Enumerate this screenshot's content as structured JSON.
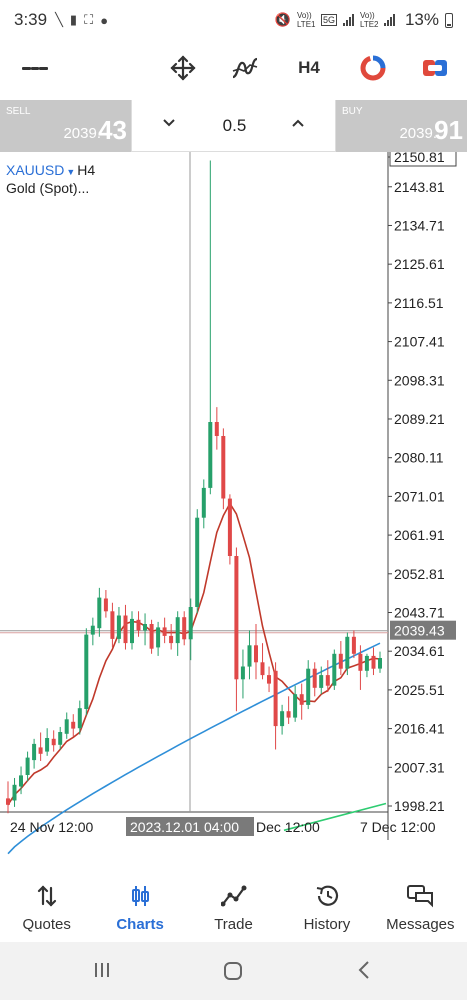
{
  "status_bar": {
    "time": "3:39",
    "battery": "13%",
    "net1": "Vo)) LTE1",
    "net2": "Vo)) LTE2",
    "gen": "5G"
  },
  "toolbar": {
    "timeframe": "H4",
    "icons": [
      "menu-icon",
      "crosshair-move-icon",
      "indicators-icon",
      "timeframe",
      "one-click-trading-icon",
      "deal-icon"
    ]
  },
  "trade": {
    "sell_label": "SELL",
    "sell_price_small": "2039.",
    "sell_price_big": "43",
    "buy_label": "BUY",
    "buy_price_small": "2039.",
    "buy_price_big": "91",
    "volume": "0.5"
  },
  "chart": {
    "symbol": "XAUUSD",
    "timeframe": "H4",
    "instrument_name": "Gold (Spot)...",
    "price_ticks": [
      "2150.81",
      "2143.81",
      "2134.71",
      "2125.61",
      "2116.51",
      "2107.41",
      "2098.31",
      "2089.21",
      "2080.11",
      "2071.01",
      "2061.91",
      "2052.81",
      "2043.71",
      "2039.43",
      "2034.61",
      "2025.51",
      "2016.41",
      "2007.31",
      "1998.21"
    ],
    "time_labels": [
      "24 Nov 12:00",
      "2023.12.01 04:00",
      "Dec 12:00",
      "7 Dec 12:00"
    ],
    "colors": {
      "bull": "#26a06a",
      "bear": "#e04848",
      "ma_fast": "#c0392b",
      "ma_slow": "#2f8fd8",
      "ma_long": "#2ecc71",
      "price_line": "#999999"
    }
  },
  "chart_data": {
    "type": "candlestick",
    "symbol": "XAUUSD",
    "timeframe": "H4",
    "ylim": [
      1995,
      2153
    ],
    "current_price": 2039.43,
    "candles": [
      {
        "o": 2000.0,
        "h": 2004.0,
        "l": 1996.5,
        "c": 1998.5
      },
      {
        "o": 1999.5,
        "h": 2004.8,
        "l": 1998.0,
        "c": 2003.2
      },
      {
        "o": 2002.8,
        "h": 2007.5,
        "l": 2001.0,
        "c": 2005.4
      },
      {
        "o": 2005.5,
        "h": 2011.0,
        "l": 2004.0,
        "c": 2009.6
      },
      {
        "o": 2009.0,
        "h": 2014.0,
        "l": 2007.0,
        "c": 2012.8
      },
      {
        "o": 2012.0,
        "h": 2015.5,
        "l": 2008.8,
        "c": 2010.5
      },
      {
        "o": 2011.0,
        "h": 2016.5,
        "l": 2010.0,
        "c": 2014.2
      },
      {
        "o": 2014.0,
        "h": 2016.0,
        "l": 2011.0,
        "c": 2012.5
      },
      {
        "o": 2012.6,
        "h": 2016.8,
        "l": 2011.5,
        "c": 2015.6
      },
      {
        "o": 2015.2,
        "h": 2020.2,
        "l": 2014.0,
        "c": 2018.6
      },
      {
        "o": 2018.0,
        "h": 2019.8,
        "l": 2014.5,
        "c": 2016.4
      },
      {
        "o": 2016.5,
        "h": 2023.0,
        "l": 2015.0,
        "c": 2021.2
      },
      {
        "o": 2021.0,
        "h": 2040.0,
        "l": 2019.5,
        "c": 2038.5
      },
      {
        "o": 2038.5,
        "h": 2042.5,
        "l": 2036.0,
        "c": 2040.6
      },
      {
        "o": 2040.0,
        "h": 2049.5,
        "l": 2038.0,
        "c": 2047.2
      },
      {
        "o": 2047.0,
        "h": 2049.0,
        "l": 2042.5,
        "c": 2044.0
      },
      {
        "o": 2044.0,
        "h": 2046.0,
        "l": 2035.5,
        "c": 2037.5
      },
      {
        "o": 2037.5,
        "h": 2045.0,
        "l": 2036.5,
        "c": 2043.0
      },
      {
        "o": 2043.0,
        "h": 2045.5,
        "l": 2035.0,
        "c": 2036.5
      },
      {
        "o": 2036.5,
        "h": 2044.0,
        "l": 2035.0,
        "c": 2042.2
      },
      {
        "o": 2042.0,
        "h": 2044.0,
        "l": 2038.0,
        "c": 2039.5
      },
      {
        "o": 2039.5,
        "h": 2043.5,
        "l": 2036.0,
        "c": 2041.0
      },
      {
        "o": 2041.0,
        "h": 2042.0,
        "l": 2034.0,
        "c": 2035.2
      },
      {
        "o": 2035.5,
        "h": 2041.5,
        "l": 2033.5,
        "c": 2040.2
      },
      {
        "o": 2040.2,
        "h": 2042.5,
        "l": 2036.5,
        "c": 2038.2
      },
      {
        "o": 2038.2,
        "h": 2041.0,
        "l": 2035.0,
        "c": 2036.5
      },
      {
        "o": 2036.5,
        "h": 2044.0,
        "l": 2033.5,
        "c": 2042.6
      },
      {
        "o": 2042.6,
        "h": 2044.0,
        "l": 2036.0,
        "c": 2037.4
      },
      {
        "o": 2037.4,
        "h": 2047.0,
        "l": 2032.5,
        "c": 2045.0
      },
      {
        "o": 2045.0,
        "h": 2068.0,
        "l": 2043.5,
        "c": 2066.0
      },
      {
        "o": 2066.0,
        "h": 2075.0,
        "l": 2063.5,
        "c": 2073.0
      },
      {
        "o": 2073.0,
        "h": 2150.0,
        "l": 2071.5,
        "c": 2088.5
      },
      {
        "o": 2088.5,
        "h": 2092.0,
        "l": 2082.0,
        "c": 2085.2
      },
      {
        "o": 2085.2,
        "h": 2087.0,
        "l": 2068.0,
        "c": 2070.5
      },
      {
        "o": 2070.5,
        "h": 2071.5,
        "l": 2055.0,
        "c": 2057.0
      },
      {
        "o": 2057.0,
        "h": 2059.0,
        "l": 2020.5,
        "c": 2028.0
      },
      {
        "o": 2028.0,
        "h": 2035.0,
        "l": 2023.5,
        "c": 2031.0
      },
      {
        "o": 2031.0,
        "h": 2039.5,
        "l": 2028.0,
        "c": 2036.0
      },
      {
        "o": 2036.0,
        "h": 2041.0,
        "l": 2028.0,
        "c": 2032.0
      },
      {
        "o": 2032.0,
        "h": 2036.5,
        "l": 2028.0,
        "c": 2029.0
      },
      {
        "o": 2029.0,
        "h": 2031.0,
        "l": 2025.0,
        "c": 2027.0
      },
      {
        "o": 2030.0,
        "h": 2032.0,
        "l": 2011.5,
        "c": 2017.0
      },
      {
        "o": 2017.0,
        "h": 2022.0,
        "l": 2015.0,
        "c": 2020.5
      },
      {
        "o": 2020.5,
        "h": 2024.0,
        "l": 2017.5,
        "c": 2019.0
      },
      {
        "o": 2019.0,
        "h": 2026.5,
        "l": 2018.0,
        "c": 2024.5
      },
      {
        "o": 2024.5,
        "h": 2027.0,
        "l": 2018.5,
        "c": 2022.0
      },
      {
        "o": 2022.0,
        "h": 2032.5,
        "l": 2021.0,
        "c": 2030.5
      },
      {
        "o": 2030.5,
        "h": 2032.0,
        "l": 2024.0,
        "c": 2026.0
      },
      {
        "o": 2026.0,
        "h": 2031.0,
        "l": 2024.5,
        "c": 2029.0
      },
      {
        "o": 2029.0,
        "h": 2032.5,
        "l": 2025.0,
        "c": 2026.5
      },
      {
        "o": 2026.5,
        "h": 2035.0,
        "l": 2025.5,
        "c": 2034.0
      },
      {
        "o": 2034.0,
        "h": 2037.0,
        "l": 2029.0,
        "c": 2030.5
      },
      {
        "o": 2030.5,
        "h": 2039.0,
        "l": 2029.0,
        "c": 2038.0
      },
      {
        "o": 2038.0,
        "h": 2039.5,
        "l": 2033.0,
        "c": 2034.0
      },
      {
        "o": 2034.0,
        "h": 2036.0,
        "l": 2025.5,
        "c": 2030.0
      },
      {
        "o": 2030.0,
        "h": 2034.0,
        "l": 2028.5,
        "c": 2033.5
      },
      {
        "o": 2033.5,
        "h": 2035.5,
        "l": 2029.0,
        "c": 2030.5
      },
      {
        "o": 2030.5,
        "h": 2034.5,
        "l": 2029.5,
        "c": 2033.0
      }
    ]
  },
  "bottom_nav": {
    "items": [
      {
        "label": "Quotes",
        "icon": "quotes-arrows-icon",
        "active": false
      },
      {
        "label": "Charts",
        "icon": "candles-icon",
        "active": true
      },
      {
        "label": "Trade",
        "icon": "trade-trend-icon",
        "active": false
      },
      {
        "label": "History",
        "icon": "history-clock-icon",
        "active": false
      },
      {
        "label": "Messages",
        "icon": "messages-icon",
        "active": false
      }
    ]
  }
}
